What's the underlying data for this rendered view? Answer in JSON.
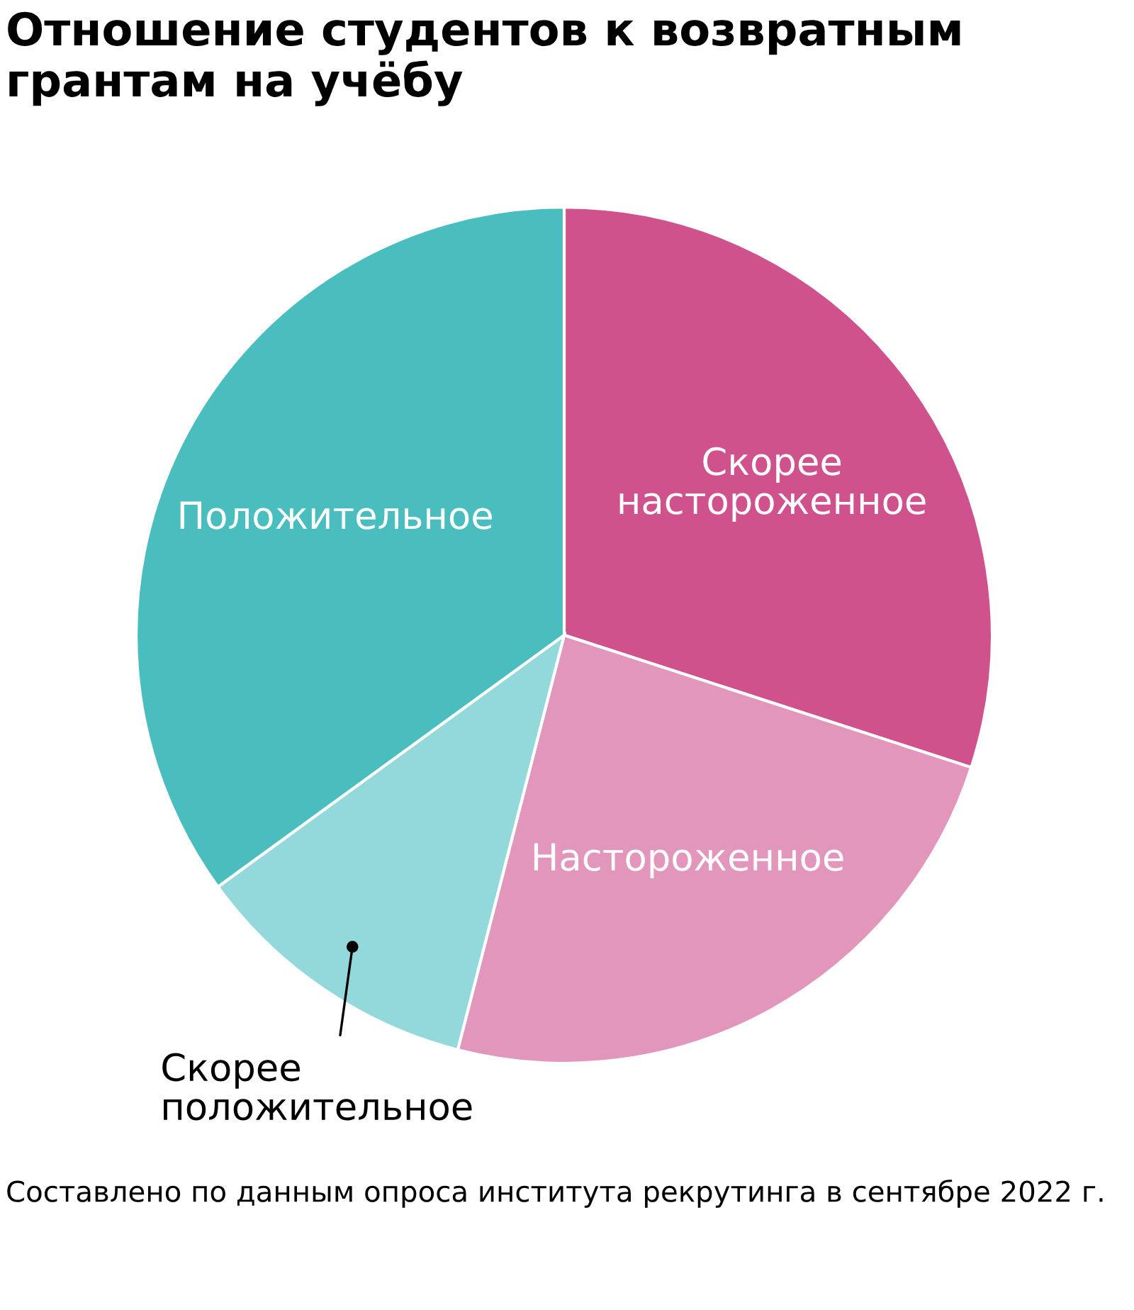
{
  "chart_data": {
    "type": "pie",
    "title": "Отношение студентов к возвратным грантам на учёбу",
    "categories": [
      "Скорее настороженное",
      "Настороженное",
      "Скорее положительное",
      "Положительное"
    ],
    "values": [
      30,
      24,
      11,
      35
    ],
    "colors": [
      "#d0528c",
      "#e396bb",
      "#93d8db",
      "#4abdbf"
    ],
    "legend": false,
    "annotations": [
      "Составлено по данным опроса института рекрутинга в сентябре 2022 г."
    ]
  }
}
